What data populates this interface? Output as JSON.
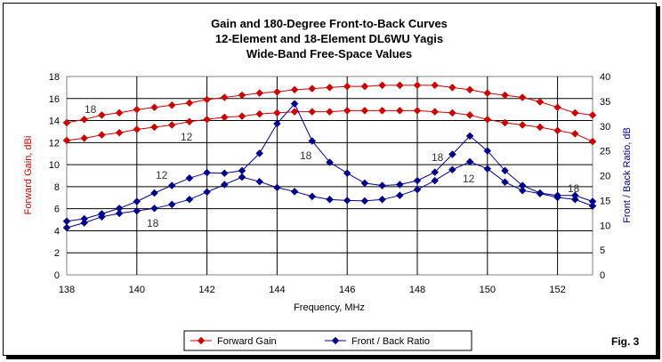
{
  "chart_data": {
    "type": "line",
    "title": [
      "Gain and 180-Degree Front-to-Back Curves",
      "12-Element and 18-Element DL6WU Yagis",
      "Wide-Band Free-Space Values"
    ],
    "xlabel": "Frequency, MHz",
    "ylabel_left": "Forward Gain, dBi",
    "ylabel_right": "Front / Back Ratio, dB",
    "xlim": [
      138,
      153
    ],
    "ylim_left": [
      0,
      18
    ],
    "ylim_right": [
      0,
      40
    ],
    "xticks": [
      138,
      140,
      142,
      144,
      146,
      148,
      150,
      152
    ],
    "yticks_left": [
      0,
      2,
      4,
      6,
      8,
      10,
      12,
      14,
      16,
      18
    ],
    "yticks_right": [
      0,
      5,
      10,
      15,
      20,
      25,
      30,
      35,
      40
    ],
    "x": [
      138,
      138.5,
      139,
      139.5,
      140,
      140.5,
      141,
      141.5,
      142,
      142.5,
      143,
      143.5,
      144,
      144.5,
      145,
      145.5,
      146,
      146.5,
      147,
      147.5,
      148,
      148.5,
      149,
      149.5,
      150,
      150.5,
      151,
      151.5,
      152,
      152.5,
      153
    ],
    "series": [
      {
        "name": "Forward Gain",
        "label": "18",
        "axis": "left",
        "color": "#cc0000",
        "values": [
          13.8,
          14.1,
          14.5,
          14.7,
          15.0,
          15.2,
          15.4,
          15.6,
          15.9,
          16.1,
          16.3,
          16.5,
          16.6,
          16.8,
          16.9,
          17.0,
          17.1,
          17.1,
          17.2,
          17.2,
          17.2,
          17.2,
          17.0,
          16.8,
          16.5,
          16.3,
          16.1,
          15.7,
          15.2,
          14.7,
          14.5
        ]
      },
      {
        "name": "Forward Gain",
        "label": "12",
        "axis": "left",
        "color": "#cc0000",
        "values": [
          12.2,
          12.4,
          12.7,
          12.9,
          13.2,
          13.4,
          13.6,
          13.9,
          14.1,
          14.3,
          14.4,
          14.6,
          14.7,
          14.8,
          14.8,
          14.8,
          14.9,
          14.9,
          14.9,
          14.9,
          14.9,
          14.8,
          14.7,
          14.5,
          14.1,
          13.8,
          13.6,
          13.4,
          13.1,
          12.8,
          12.1
        ]
      },
      {
        "name": "Front / Back Ratio",
        "label": "12",
        "axis": "right",
        "color": "#00008b",
        "values": [
          10.8,
          11.3,
          12.3,
          13.4,
          14.8,
          16.5,
          18.0,
          19.5,
          20.6,
          20.5,
          21.0,
          24.5,
          30.5,
          34.5,
          27.0,
          22.7,
          20.5,
          18.5,
          18.0,
          18.2,
          19.0,
          20.7,
          24.3,
          28.0,
          25.0,
          21.0,
          18.0,
          16.5,
          16.0,
          16.0,
          14.8
        ]
      },
      {
        "name": "Front / Back Ratio",
        "label": "18",
        "axis": "right",
        "color": "#00008b",
        "values": [
          9.5,
          10.5,
          11.7,
          12.4,
          12.9,
          13.4,
          14.2,
          15.2,
          16.7,
          18.2,
          19.7,
          18.8,
          17.6,
          16.8,
          15.8,
          15.2,
          15.0,
          14.9,
          15.2,
          16.0,
          17.2,
          19.0,
          21.2,
          22.8,
          21.4,
          18.7,
          17.0,
          16.4,
          15.6,
          15.2,
          13.9
        ]
      }
    ],
    "annotations": [
      "18",
      "12",
      "12",
      "18",
      "18",
      "18",
      "12",
      "18"
    ],
    "legend": [
      "Forward Gain",
      "Front / Back Ratio"
    ],
    "legend_placement": "bottom-center",
    "grid": true
  },
  "figure_label": "Fig. 3"
}
